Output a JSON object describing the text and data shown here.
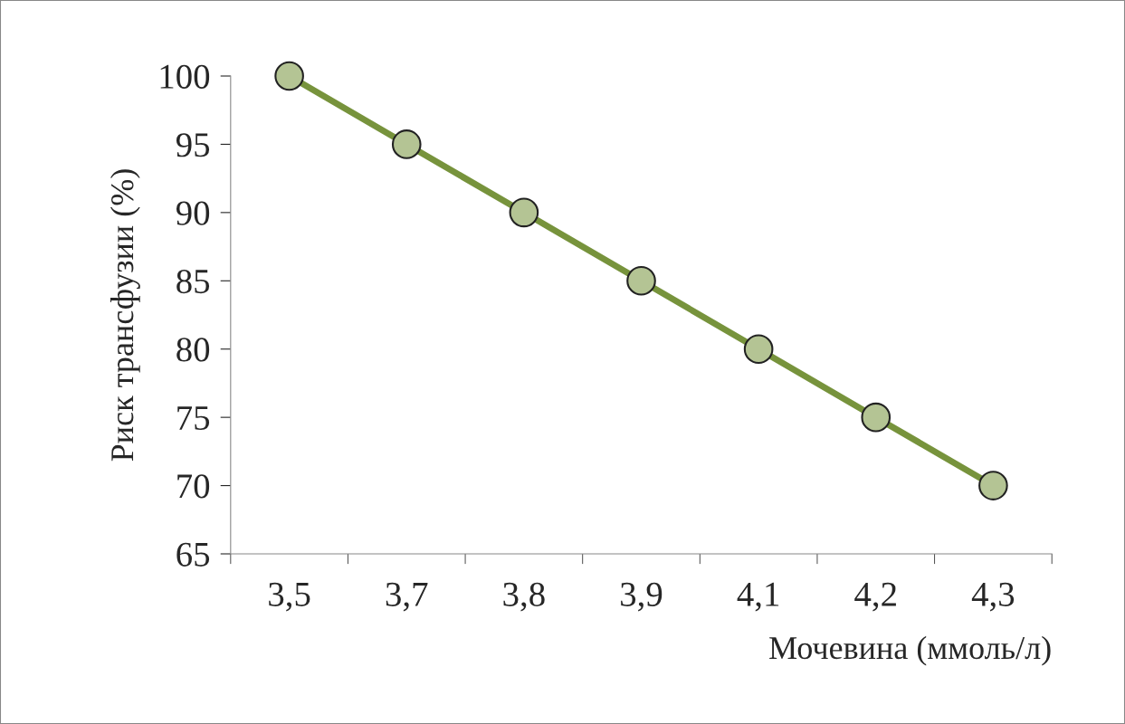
{
  "chart_data": {
    "type": "line",
    "xlabel": "Мочевина (ммоль/л)",
    "ylabel": "Риск трансфузии (%)",
    "categories": [
      "3,5",
      "3,7",
      "3,8",
      "3,9",
      "4,1",
      "4,2",
      "4,3"
    ],
    "series": [
      {
        "color": "#77933c",
        "values": [
          100,
          95,
          90,
          85,
          80,
          75,
          70
        ]
      }
    ],
    "ylim": [
      65,
      100
    ],
    "yticks": [
      65,
      70,
      75,
      80,
      85,
      90,
      95,
      100
    ],
    "marker": "circle",
    "line_style": "solid",
    "grid": false,
    "legend": false
  }
}
